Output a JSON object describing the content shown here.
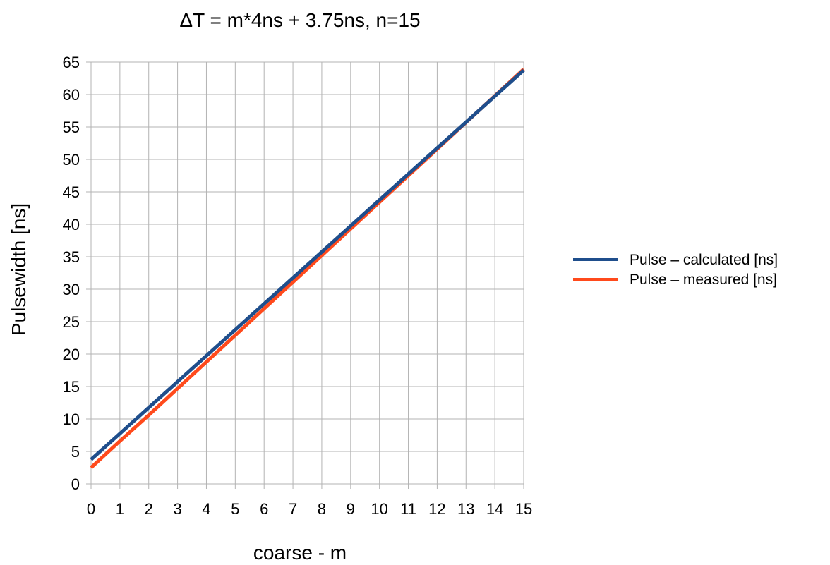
{
  "chart_data": {
    "type": "line",
    "title": "ΔT = m*4ns + 3.75ns, n=15",
    "xlabel": "coarse - m",
    "ylabel": "Pulsewidth [ns]",
    "x": [
      0,
      1,
      2,
      3,
      4,
      5,
      6,
      7,
      8,
      9,
      10,
      11,
      12,
      13,
      14,
      15
    ],
    "xlim": [
      0,
      15
    ],
    "ylim": [
      0,
      65
    ],
    "x_ticks": [
      "0",
      "1",
      "2",
      "3",
      "4",
      "5",
      "6",
      "7",
      "8",
      "9",
      "10",
      "11",
      "12",
      "13",
      "14",
      "15"
    ],
    "y_ticks": [
      "0",
      "5",
      "10",
      "15",
      "20",
      "25",
      "30",
      "35",
      "40",
      "45",
      "50",
      "55",
      "60",
      "65"
    ],
    "grid": true,
    "legend_position": "right",
    "series": [
      {
        "name": "Pulse – calculated [ns]",
        "color": "#1f4e8c",
        "values": [
          3.75,
          7.75,
          11.75,
          15.75,
          19.75,
          23.75,
          27.75,
          31.75,
          35.75,
          39.75,
          43.75,
          47.75,
          51.75,
          55.75,
          59.75,
          63.75
        ]
      },
      {
        "name": "Pulse – measured [ns]",
        "color": "#ff4a1c",
        "values": [
          2.5,
          6.6,
          10.6,
          14.7,
          18.8,
          22.9,
          27.0,
          31.1,
          35.2,
          39.3,
          43.4,
          47.5,
          51.6,
          55.7,
          59.8,
          63.9
        ]
      }
    ]
  }
}
